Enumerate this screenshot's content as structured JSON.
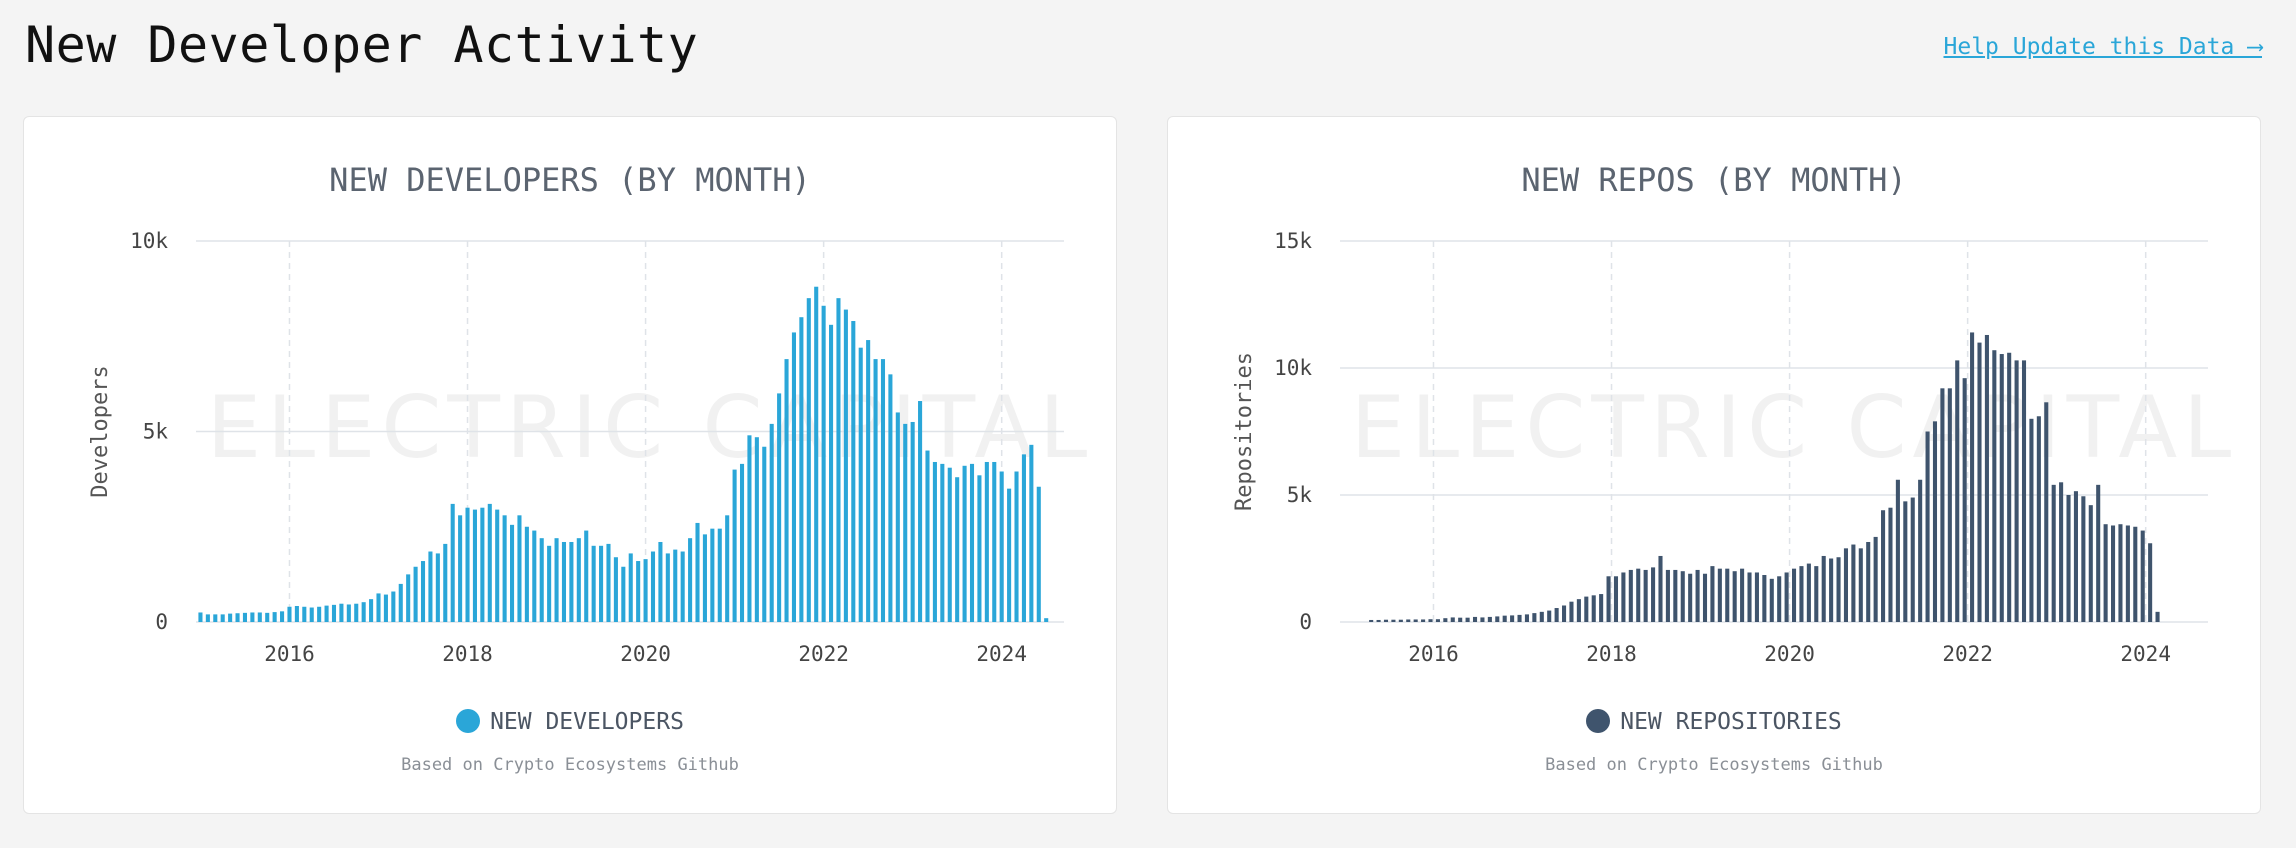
{
  "header": {
    "title": "New Developer Activity",
    "help_link": "Help Update this Data ⟶"
  },
  "colors": {
    "developers": "#2aa6d8",
    "repositories": "#3f546d",
    "grid": "#dfe3e8",
    "link": "#2aa6d8"
  },
  "watermark_text": "ELECTRIC CAPITAL",
  "chart_data": [
    {
      "type": "bar",
      "title": "NEW DEVELOPERS (BY MONTH)",
      "ylabel": "Developers",
      "xlabel": "",
      "legend": "NEW DEVELOPERS",
      "legend_position": "bottom-center",
      "note": "Based on Crypto Ecosystems Github",
      "ylim": [
        0,
        10000
      ],
      "yticks": [
        0,
        5000,
        10000
      ],
      "ytick_labels": [
        "0",
        "5k",
        "10k"
      ],
      "xticks": [
        2016,
        2018,
        2020,
        2022,
        2024
      ],
      "xlim": [
        2014.95,
        2024.7
      ],
      "grid": true,
      "x_start": 2015.0,
      "x_step": 0.0833333,
      "values": [
        250,
        200,
        200,
        200,
        220,
        230,
        240,
        250,
        250,
        240,
        260,
        280,
        400,
        420,
        400,
        380,
        400,
        430,
        450,
        480,
        460,
        480,
        520,
        600,
        750,
        720,
        800,
        1000,
        1250,
        1450,
        1600,
        1850,
        1800,
        2050,
        3100,
        2800,
        3000,
        2950,
        3000,
        3100,
        2950,
        2800,
        2550,
        2800,
        2500,
        2400,
        2200,
        2000,
        2200,
        2100,
        2100,
        2200,
        2400,
        2000,
        2000,
        2050,
        1700,
        1450,
        1800,
        1600,
        1650,
        1850,
        2100,
        1800,
        1900,
        1850,
        2200,
        2600,
        2300,
        2450,
        2450,
        2800,
        4000,
        4150,
        4900,
        4850,
        4600,
        5200,
        6000,
        6900,
        7600,
        8000,
        8500,
        8800,
        8300,
        7800,
        8500,
        8200,
        7900,
        7200,
        7400,
        6900,
        6900,
        6500,
        5500,
        5200,
        5250,
        5800,
        4500,
        4200,
        4150,
        4050,
        3800,
        4100,
        4150,
        3850,
        4200,
        4200,
        3950,
        3500,
        3950,
        4400,
        4650,
        3550,
        100
      ]
    },
    {
      "type": "bar",
      "title": "NEW REPOS (BY MONTH)",
      "ylabel": "Repositories",
      "xlabel": "",
      "legend": "NEW REPOSITORIES",
      "legend_position": "bottom-center",
      "note": "Based on Crypto Ecosystems Github",
      "ylim": [
        0,
        15000
      ],
      "yticks": [
        0,
        5000,
        10000,
        15000
      ],
      "ytick_labels": [
        "0",
        "5k",
        "10k",
        "15k"
      ],
      "xticks": [
        2016,
        2018,
        2020,
        2022,
        2024
      ],
      "xlim": [
        2014.95,
        2024.7
      ],
      "grid": true,
      "x_start": 2015.3,
      "x_step": 0.0833333,
      "values": [
        80,
        80,
        90,
        90,
        90,
        100,
        100,
        100,
        110,
        110,
        150,
        180,
        170,
        170,
        200,
        180,
        200,
        220,
        250,
        260,
        280,
        300,
        350,
        400,
        450,
        550,
        650,
        800,
        900,
        1000,
        1050,
        1100,
        1800,
        1800,
        1950,
        2050,
        2100,
        2050,
        2150,
        2600,
        2050,
        2050,
        2000,
        1900,
        2050,
        1900,
        2200,
        2100,
        2100,
        2000,
        2100,
        1950,
        1950,
        1850,
        1700,
        1800,
        1950,
        2100,
        2200,
        2300,
        2200,
        2600,
        2500,
        2550,
        2900,
        3050,
        2900,
        3150,
        3350,
        4400,
        4500,
        5600,
        4750,
        4900,
        5600,
        7500,
        7900,
        9200,
        9200,
        10300,
        9600,
        11400,
        11000,
        11300,
        10700,
        10550,
        10600,
        10300,
        10300,
        8000,
        8100,
        8650,
        5400,
        5500,
        5000,
        5150,
        4950,
        4600,
        5400,
        3850,
        3800,
        3850,
        3800,
        3750,
        3600,
        3100,
        400
      ]
    }
  ]
}
